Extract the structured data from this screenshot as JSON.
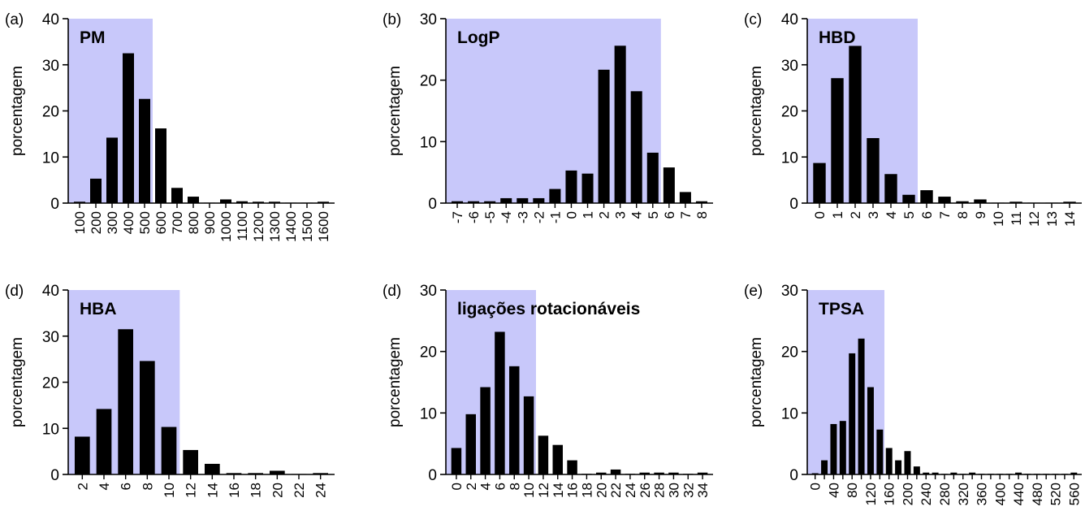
{
  "colors": {
    "shade": "#c8c8fa",
    "bar": "#000000",
    "axis": "#000000"
  },
  "chart_data": [
    {
      "type": "bar",
      "panel_label": "(a)",
      "title": "PM",
      "ylabel": "porcentagem",
      "ylim": [
        0,
        40
      ],
      "yticks": [
        "0",
        "10",
        "20",
        "30",
        "40"
      ],
      "categories": [
        "100",
        "200",
        "300",
        "400",
        "500",
        "600",
        "700",
        "800",
        "900",
        "1000",
        "1100",
        "1200",
        "1300",
        "1400",
        "1500",
        "1600"
      ],
      "values": [
        0.3,
        5.3,
        14.2,
        32.5,
        22.6,
        16.2,
        3.3,
        1.4,
        0.1,
        0.8,
        0.4,
        0.3,
        0.3,
        0.1,
        0.1,
        0.3
      ],
      "shaded_up_to_category": "500"
    },
    {
      "type": "bar",
      "panel_label": "(b)",
      "title": "LogP",
      "ylabel": "porcentagem",
      "ylim": [
        0,
        30
      ],
      "yticks": [
        "0",
        "10",
        "20",
        "30"
      ],
      "categories": [
        "-7",
        "-6",
        "-5",
        "-4",
        "-3",
        "-2",
        "-1",
        "0",
        "1",
        "2",
        "3",
        "4",
        "5",
        "6",
        "7",
        "8"
      ],
      "values": [
        0.3,
        0.3,
        0.3,
        0.8,
        0.8,
        0.8,
        2.3,
        5.3,
        4.8,
        21.7,
        25.6,
        18.2,
        8.2,
        5.8,
        1.8,
        0.3
      ],
      "shaded_up_to_category": "5"
    },
    {
      "type": "bar",
      "panel_label": "(c)",
      "title": "HBD",
      "ylabel": "porcentagem",
      "ylim": [
        0,
        40
      ],
      "yticks": [
        "0",
        "10",
        "20",
        "30",
        "40"
      ],
      "categories": [
        "0",
        "1",
        "2",
        "3",
        "4",
        "5",
        "6",
        "7",
        "8",
        "9",
        "10",
        "11",
        "12",
        "13",
        "14"
      ],
      "values": [
        8.7,
        27.1,
        34.1,
        14.1,
        6.3,
        1.8,
        2.8,
        1.4,
        0.4,
        0.8,
        0.1,
        0.3,
        0.1,
        0.1,
        0.3
      ],
      "shaded_up_to_category": "5"
    },
    {
      "type": "bar",
      "panel_label": "(d)",
      "title": "HBA",
      "ylabel": "porcentagem",
      "ylim": [
        0,
        40
      ],
      "yticks": [
        "0",
        "10",
        "20",
        "30",
        "40"
      ],
      "categories": [
        "2",
        "4",
        "6",
        "8",
        "10",
        "12",
        "14",
        "16",
        "18",
        "20",
        "22",
        "24"
      ],
      "values": [
        8.2,
        14.2,
        31.5,
        24.6,
        10.3,
        5.3,
        2.3,
        0.3,
        0.3,
        0.8,
        0.1,
        0.3
      ],
      "shaded_up_to_category": "10"
    },
    {
      "type": "bar",
      "panel_label": "(d)",
      "title": "ligações rotacionáveis",
      "ylabel": "porcentagem",
      "ylim": [
        0,
        30
      ],
      "yticks": [
        "0",
        "10",
        "20",
        "30"
      ],
      "categories": [
        "0",
        "2",
        "4",
        "6",
        "8",
        "10",
        "12",
        "14",
        "16",
        "18",
        "20",
        "22",
        "24",
        "26",
        "28",
        "30",
        "32",
        "34"
      ],
      "values": [
        4.3,
        9.8,
        14.2,
        23.2,
        17.6,
        12.7,
        6.3,
        4.8,
        2.3,
        0.1,
        0.3,
        0.8,
        0.1,
        0.3,
        0.3,
        0.3,
        0.1,
        0.3
      ],
      "shaded_up_to_category": "10"
    },
    {
      "type": "bar",
      "panel_label": "(e)",
      "title": "TPSA",
      "ylabel": "porcentagem",
      "ylim": [
        0,
        30
      ],
      "yticks": [
        "0",
        "10",
        "20",
        "30"
      ],
      "categories": [
        "0",
        "20",
        "40",
        "60",
        "80",
        "100",
        "120",
        "140",
        "160",
        "180",
        "200",
        "220",
        "240",
        "260",
        "280",
        "300",
        "320",
        "340",
        "360",
        "380",
        "400",
        "420",
        "440",
        "460",
        "480",
        "500",
        "520",
        "540",
        "560"
      ],
      "tick_labels": [
        "0",
        "",
        "40",
        "",
        "80",
        "",
        "120",
        "",
        "160",
        "",
        "200",
        "",
        "240",
        "",
        "280",
        "",
        "320",
        "",
        "360",
        "",
        "400",
        "",
        "440",
        "",
        "480",
        "",
        "520",
        "",
        "560"
      ],
      "values": [
        0.2,
        2.3,
        8.2,
        8.7,
        19.7,
        22.1,
        14.2,
        7.3,
        4.3,
        2.3,
        3.8,
        1.3,
        0.3,
        0.3,
        0.1,
        0.3,
        0.1,
        0.3,
        0.1,
        0.1,
        0.1,
        0.1,
        0.3,
        0.1,
        0.1,
        0.1,
        0.1,
        0.1,
        0.3
      ],
      "shaded_up_to_category": "140"
    }
  ]
}
